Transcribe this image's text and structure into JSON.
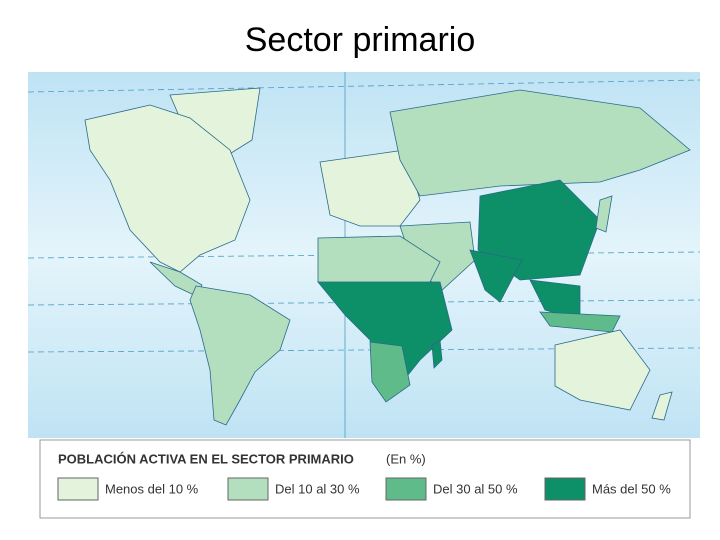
{
  "header": {
    "title": "Sector primario"
  },
  "legend": {
    "title": "POBLACIÓN ACTIVA EN EL SECTOR PRIMARIO",
    "unit": "(En %)",
    "items": [
      {
        "label": "Menos del 10 %",
        "color": "#e3f3dc"
      },
      {
        "label": "Del 10 al 30 %",
        "color": "#b3dfbf"
      },
      {
        "label": "Del 30 al 50 %",
        "color": "#5fbb8a"
      },
      {
        "label": "Más del 50 %",
        "color": "#0d8f68"
      }
    ]
  }
}
